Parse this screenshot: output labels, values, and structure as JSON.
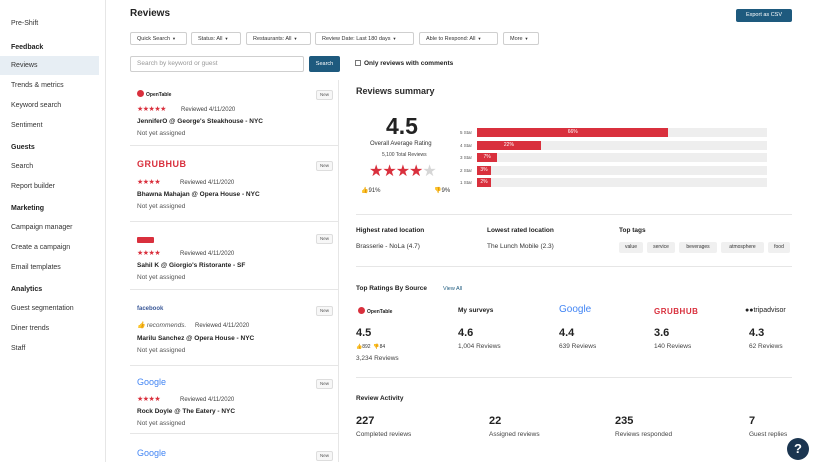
{
  "sidebar": {
    "top_item": "Pre-Shift",
    "sections": [
      {
        "heading": "Feedback",
        "items": [
          "Reviews",
          "Trends & metrics",
          "Keyword search",
          "Sentiment"
        ]
      },
      {
        "heading": "Guests",
        "items": [
          "Search",
          "Report builder"
        ]
      },
      {
        "heading": "Marketing",
        "items": [
          "Campaign manager",
          "Create a campaign",
          "Email templates"
        ]
      },
      {
        "heading": "Analytics",
        "items": [
          "Guest segmentation",
          "Diner trends",
          "Staff"
        ]
      }
    ],
    "active_item": "Reviews"
  },
  "header": {
    "title": "Reviews",
    "export_label": "Export as CSV"
  },
  "filters": [
    "Quick Search",
    "Status: All",
    "Restaurants: All",
    "Review Date: Last 180 days",
    "Able to Respond: All",
    "More"
  ],
  "search": {
    "placeholder": "Search by keyword or guest",
    "button_label": "Search",
    "checkbox_label": "Only reviews with comments"
  },
  "reviews": [
    {
      "source": "OpenTable",
      "stars": "★★★★★",
      "reviewed": "Reviewed 4/11/2020",
      "name": "JenniferO @ George's Steakhouse - NYC",
      "assigned": "Not yet assigned",
      "badge": "New"
    },
    {
      "source": "GRUBHUB",
      "stars": "★★★★",
      "reviewed": "Reviewed 4/11/2020",
      "name": "Bhawna Mahajan @ Opera House - NYC",
      "assigned": "Not yet assigned",
      "badge": "New"
    },
    {
      "source": "",
      "stars": "★★★★",
      "reviewed": "Reviewed 4/11/2020",
      "name": "Sahil K @ Giorgio's Ristorante - SF",
      "assigned": "Not yet assigned",
      "badge": "New"
    },
    {
      "source": "facebook",
      "stars": "recommends.",
      "reviewed": "Reviewed 4/11/2020",
      "name": "Marilu Sanchez @ Opera House - NYC",
      "assigned": "Not yet assigned",
      "badge": "New"
    },
    {
      "source": "Google",
      "stars": "★★★★",
      "reviewed": "Reviewed 4/11/2020",
      "name": "Rock Doyle @ The Eatery - NYC",
      "assigned": "Not yet assigned",
      "badge": "New"
    },
    {
      "source": "Google",
      "badge": "New"
    }
  ],
  "summary": {
    "title": "Reviews summary",
    "rating": "4.5",
    "rating_label": "Overall Average Rating",
    "total_reviews": "5,100 Total Reviews",
    "thumbs_up": "91%",
    "thumbs_down": "9%",
    "distribution": [
      {
        "label": "5 Star",
        "percent": 66,
        "text": "66%"
      },
      {
        "label": "4 Star",
        "percent": 22,
        "text": "22%"
      },
      {
        "label": "3 Star",
        "percent": 7,
        "text": "7%"
      },
      {
        "label": "2 Star",
        "percent": 3,
        "text": "3%"
      },
      {
        "label": "1 Star",
        "percent": 2,
        "text": "2%"
      }
    ]
  },
  "locations": {
    "highest_label": "Highest rated location",
    "highest_value": "Brasserie - NoLa (4.7)",
    "lowest_label": "Lowest rated location",
    "lowest_value": "The Lunch Mobile (2.3)",
    "tags_label": "Top tags",
    "tags": [
      "value",
      "service",
      "beverages",
      "atmosphere",
      "food"
    ]
  },
  "sources": {
    "title": "Top Ratings By Source",
    "view_all": "View All",
    "items": [
      {
        "name": "OpenTable",
        "score": "4.5",
        "up": "892",
        "down": "84",
        "count": "3,234 Reviews"
      },
      {
        "name": "My surveys",
        "score": "4.6",
        "count": "1,004 Reviews"
      },
      {
        "name": "Google",
        "score": "4.4",
        "count": "639 Reviews"
      },
      {
        "name": "GRUBHUB",
        "score": "3.6",
        "count": "140 Reviews"
      },
      {
        "name": "tripadvisor",
        "score": "4.3",
        "count": "62 Reviews"
      }
    ]
  },
  "activity": {
    "title": "Review Activity",
    "items": [
      {
        "value": "227",
        "label": "Completed reviews"
      },
      {
        "value": "22",
        "label": "Assigned reviews"
      },
      {
        "value": "235",
        "label": "Reviews responded"
      },
      {
        "value": "7",
        "label": "Guest replies"
      }
    ]
  },
  "colors": {
    "accent": "#1e5a7e",
    "star": "#d9303d",
    "grubhub": "#d9303d",
    "google_blue": "#4285f4",
    "facebook": "#3b5998"
  }
}
